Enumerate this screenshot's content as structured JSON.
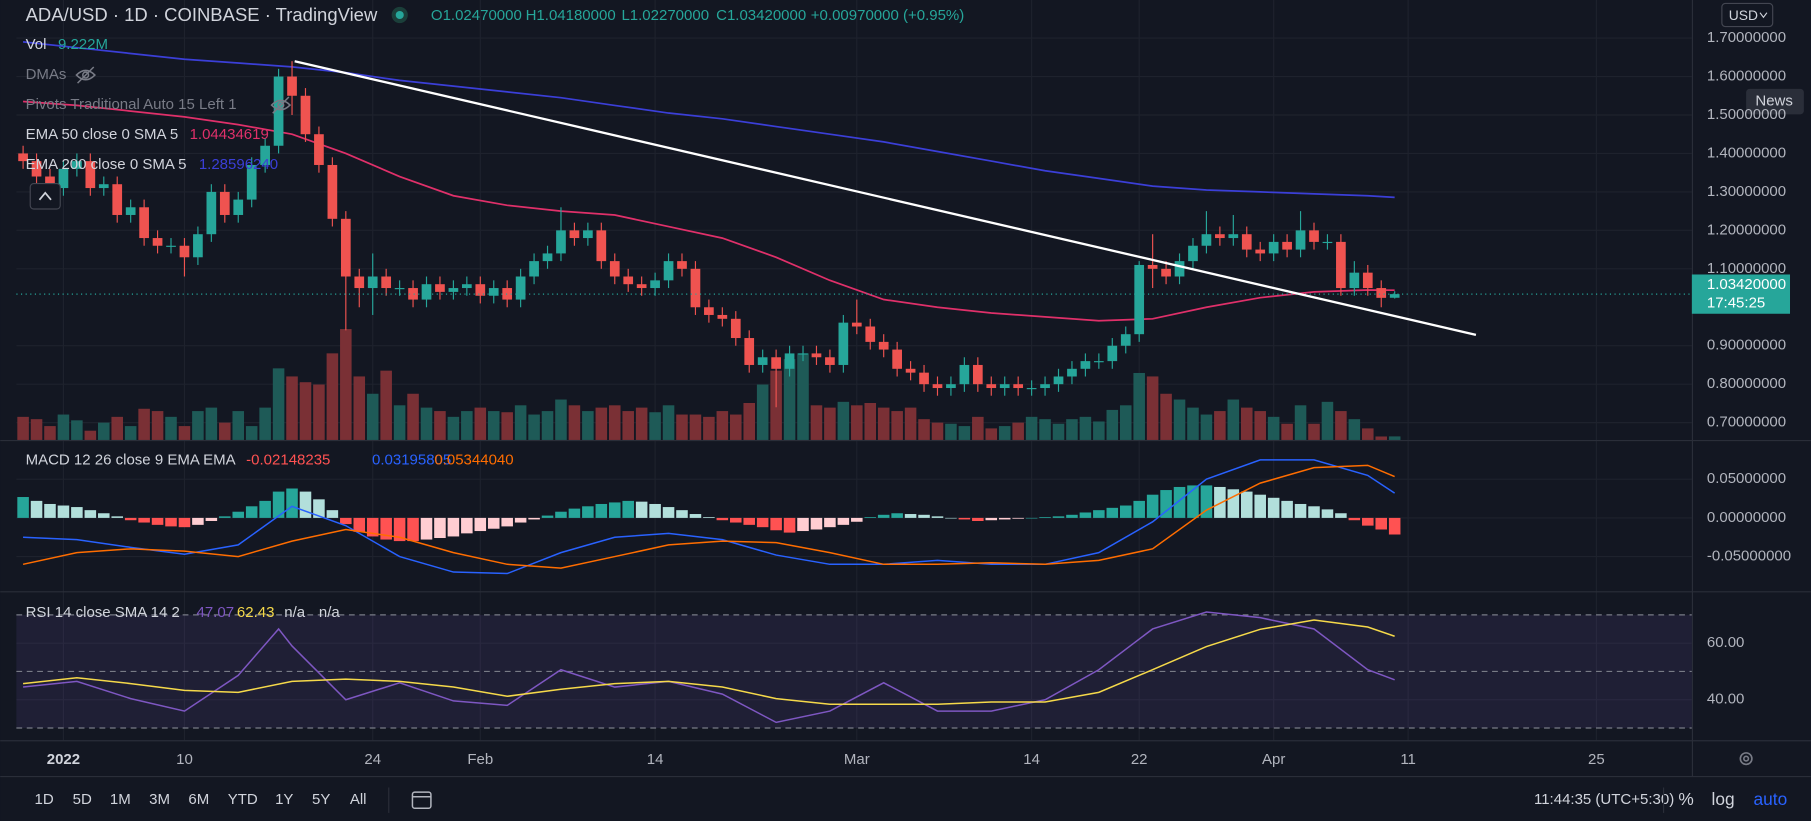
{
  "chart_data": [
    {
      "type": "candlestick",
      "title": "ADA/USD · 1D · COINBASE · TradingView",
      "ohlc_labels": [
        "O1.02470000",
        "H1.04180000",
        "L1.02270000",
        "C1.03420000",
        "+0.00970000 (+0.95%)"
      ],
      "up_color": "#26a69a",
      "down_color": "#ef5350",
      "grid": true,
      "price_label": "1.03420000",
      "countdown": "17:45:25",
      "xlim": [
        -0.5,
        124.1
      ],
      "xticks": [
        {
          "value": 3,
          "label": "2022"
        },
        {
          "value": 12,
          "label": "10"
        },
        {
          "value": 26,
          "label": "24"
        },
        {
          "value": 34,
          "label": "Feb"
        },
        {
          "value": 47,
          "label": "14"
        },
        {
          "value": 62,
          "label": "Mar"
        },
        {
          "value": 75,
          "label": "14"
        },
        {
          "value": 83,
          "label": "22"
        },
        {
          "value": 93,
          "label": "Apr"
        },
        {
          "value": 103,
          "label": "11"
        },
        {
          "value": 117,
          "label": "25"
        }
      ],
      "ylim": [
        0.655,
        1.799
      ],
      "yticks": [
        {
          "value": 0.7,
          "label": "0.70000000"
        },
        {
          "value": 0.8,
          "label": "0.80000000"
        },
        {
          "value": 0.9,
          "label": "0.90000000"
        },
        {
          "value": 1.1,
          "label": "1.10000000"
        },
        {
          "value": 1.2,
          "label": "1.20000000"
        },
        {
          "value": 1.3,
          "label": "1.30000000"
        },
        {
          "value": 1.4,
          "label": "1.40000000"
        },
        {
          "value": 1.5,
          "label": "1.50000000"
        },
        {
          "value": 1.6,
          "label": "1.60000000"
        },
        {
          "value": 1.7,
          "label": "1.70000000"
        }
      ],
      "open": [
        1.4,
        1.38,
        1.34,
        1.31,
        1.36,
        1.38,
        1.31,
        1.32,
        1.24,
        1.26,
        1.18,
        1.16,
        1.16,
        1.13,
        1.19,
        1.3,
        1.24,
        1.28,
        1.37,
        1.42,
        1.6,
        1.55,
        1.45,
        1.37,
        1.23,
        1.08,
        1.05,
        1.08,
        1.05,
        1.05,
        1.02,
        1.06,
        1.04,
        1.05,
        1.06,
        1.03,
        1.05,
        1.02,
        1.08,
        1.12,
        1.14,
        1.2,
        1.18,
        1.2,
        1.12,
        1.08,
        1.06,
        1.05,
        1.07,
        1.12,
        1.1,
        1.0,
        0.98,
        0.97,
        0.92,
        0.85,
        0.87,
        0.84,
        0.88,
        0.88,
        0.87,
        0.85,
        0.96,
        0.95,
        0.91,
        0.89,
        0.84,
        0.83,
        0.8,
        0.79,
        0.8,
        0.85,
        0.8,
        0.79,
        0.8,
        0.79,
        0.79,
        0.8,
        0.82,
        0.84,
        0.86,
        0.86,
        0.9,
        0.93,
        1.11,
        1.1,
        1.08,
        1.12,
        1.16,
        1.19,
        1.18,
        1.19,
        1.15,
        1.14,
        1.17,
        1.15,
        1.2,
        1.17,
        1.17,
        1.05,
        1.09,
        1.05,
        1.0247
      ],
      "high": [
        1.42,
        1.4,
        1.36,
        1.38,
        1.4,
        1.4,
        1.34,
        1.34,
        1.28,
        1.28,
        1.2,
        1.18,
        1.18,
        1.21,
        1.32,
        1.32,
        1.3,
        1.39,
        1.44,
        1.62,
        1.64,
        1.57,
        1.47,
        1.39,
        1.25,
        1.1,
        1.14,
        1.1,
        1.07,
        1.07,
        1.08,
        1.08,
        1.07,
        1.08,
        1.08,
        1.07,
        1.07,
        1.1,
        1.14,
        1.16,
        1.26,
        1.22,
        1.22,
        1.22,
        1.14,
        1.1,
        1.08,
        1.09,
        1.14,
        1.14,
        1.12,
        1.02,
        1.0,
        0.99,
        0.94,
        0.89,
        0.89,
        0.9,
        0.9,
        0.9,
        0.89,
        0.98,
        1.02,
        0.97,
        0.93,
        0.91,
        0.86,
        0.85,
        0.82,
        0.82,
        0.87,
        0.87,
        0.82,
        0.82,
        0.82,
        0.81,
        0.82,
        0.84,
        0.86,
        0.88,
        0.88,
        0.92,
        0.95,
        1.12,
        1.19,
        1.12,
        1.14,
        1.18,
        1.25,
        1.21,
        1.24,
        1.21,
        1.17,
        1.19,
        1.19,
        1.25,
        1.22,
        1.19,
        1.19,
        1.12,
        1.11,
        1.07,
        1.0418
      ],
      "low": [
        1.36,
        1.32,
        1.29,
        1.29,
        1.34,
        1.29,
        1.29,
        1.22,
        1.22,
        1.16,
        1.14,
        1.14,
        1.08,
        1.11,
        1.17,
        1.22,
        1.22,
        1.26,
        1.35,
        1.4,
        1.5,
        1.43,
        1.35,
        1.21,
        0.94,
        1.0,
        0.98,
        1.03,
        1.03,
        1.0,
        1.0,
        1.02,
        1.02,
        1.03,
        1.01,
        1.01,
        1.0,
        1.0,
        1.06,
        1.1,
        1.12,
        1.16,
        1.16,
        1.1,
        1.06,
        1.04,
        1.03,
        1.03,
        1.05,
        1.08,
        0.98,
        0.96,
        0.95,
        0.9,
        0.83,
        0.83,
        0.74,
        0.82,
        0.86,
        0.85,
        0.83,
        0.83,
        0.93,
        0.89,
        0.87,
        0.82,
        0.81,
        0.78,
        0.77,
        0.77,
        0.78,
        0.78,
        0.77,
        0.77,
        0.77,
        0.77,
        0.77,
        0.78,
        0.8,
        0.82,
        0.84,
        0.84,
        0.88,
        0.91,
        1.05,
        1.06,
        1.06,
        1.1,
        1.14,
        1.16,
        1.16,
        1.13,
        1.12,
        1.12,
        1.13,
        1.13,
        1.15,
        1.15,
        1.03,
        1.03,
        1.03,
        1.0,
        1.0227
      ],
      "close": [
        1.38,
        1.34,
        1.31,
        1.36,
        1.38,
        1.31,
        1.32,
        1.24,
        1.26,
        1.18,
        1.16,
        1.16,
        1.13,
        1.19,
        1.3,
        1.24,
        1.28,
        1.37,
        1.42,
        1.6,
        1.55,
        1.45,
        1.37,
        1.23,
        1.08,
        1.05,
        1.08,
        1.05,
        1.05,
        1.02,
        1.06,
        1.04,
        1.05,
        1.06,
        1.03,
        1.05,
        1.02,
        1.08,
        1.12,
        1.14,
        1.2,
        1.18,
        1.2,
        1.12,
        1.08,
        1.06,
        1.05,
        1.07,
        1.12,
        1.1,
        1.0,
        0.98,
        0.97,
        0.92,
        0.85,
        0.87,
        0.84,
        0.88,
        0.88,
        0.87,
        0.85,
        0.96,
        0.95,
        0.91,
        0.89,
        0.84,
        0.83,
        0.8,
        0.79,
        0.8,
        0.85,
        0.8,
        0.79,
        0.8,
        0.79,
        0.79,
        0.8,
        0.82,
        0.84,
        0.86,
        0.86,
        0.9,
        0.93,
        1.11,
        1.1,
        1.08,
        1.12,
        1.16,
        1.19,
        1.18,
        1.19,
        1.15,
        1.14,
        1.17,
        1.15,
        1.2,
        1.17,
        1.17,
        1.05,
        1.09,
        1.05,
        1.0245,
        1.0342
      ],
      "volume": {
        "name": "Vol",
        "value_label": "9.222M",
        "up_color": "#1e5a57",
        "down_color": "#7a3035",
        "ylim": [
          0,
          1143
        ],
        "values": [
          60,
          54,
          36,
          66,
          51,
          24,
          45,
          60,
          36,
          81,
          75,
          60,
          36,
          75,
          84,
          45,
          75,
          36,
          84,
          186,
          165,
          150,
          144,
          225,
          288,
          165,
          120,
          180,
          90,
          120,
          84,
          75,
          60,
          75,
          84,
          75,
          72,
          90,
          66,
          75,
          105,
          90,
          75,
          84,
          90,
          75,
          84,
          72,
          90,
          66,
          66,
          60,
          75,
          66,
          96,
          144,
          180,
          210,
          225,
          90,
          84,
          99,
          90,
          96,
          84,
          75,
          84,
          54,
          45,
          42,
          36,
          60,
          30,
          36,
          45,
          60,
          54,
          42,
          54,
          60,
          48,
          78,
          90,
          174,
          165,
          120,
          105,
          84,
          66,
          75,
          105,
          84,
          75,
          60,
          42,
          90,
          42,
          99,
          75,
          54,
          30,
          9,
          9.222
        ]
      },
      "indicators": [
        "DMAs",
        "Pivots Traditional Auto 15 Left 1"
      ],
      "series": [
        {
          "name": "EMA 50 close 0 SMA 5",
          "value_label": "1.04434619",
          "color": "#e0306a",
          "x": [
            0,
            4,
            8,
            12,
            16,
            20,
            24,
            28,
            32,
            36,
            40,
            44,
            48,
            52,
            56,
            60,
            64,
            68,
            72,
            76,
            80,
            84,
            88,
            92,
            96,
            100,
            102
          ],
          "values": [
            1.535,
            1.525,
            1.51,
            1.495,
            1.475,
            1.45,
            1.4,
            1.34,
            1.29,
            1.265,
            1.25,
            1.24,
            1.21,
            1.18,
            1.13,
            1.07,
            1.02,
            1.0,
            0.985,
            0.975,
            0.965,
            0.97,
            1.0,
            1.025,
            1.04,
            1.045,
            1.04434619
          ]
        },
        {
          "name": "EMA 200 close 0 SMA 5",
          "value_label": "1.28596240",
          "color": "#3b3fd8",
          "x": [
            0,
            4,
            8,
            12,
            16,
            20,
            24,
            28,
            32,
            36,
            40,
            44,
            48,
            52,
            56,
            60,
            64,
            68,
            72,
            76,
            80,
            84,
            88,
            92,
            96,
            100,
            102
          ],
          "values": [
            1.69,
            1.675,
            1.66,
            1.645,
            1.635,
            1.625,
            1.61,
            1.59,
            1.575,
            1.56,
            1.545,
            1.525,
            1.505,
            1.49,
            1.47,
            1.45,
            1.43,
            1.405,
            1.38,
            1.355,
            1.335,
            1.315,
            1.305,
            1.3,
            1.295,
            1.29,
            1.2859624
          ]
        }
      ]
    },
    {
      "type": "macd",
      "name": "MACD 12 26 close 9 EMA EMA",
      "ylim": [
        -0.0948,
        0.0993
      ],
      "yticks": [
        {
          "value": 0.05,
          "label": "0.05000000"
        },
        {
          "value": 0,
          "label": "0.00000000"
        },
        {
          "value": -0.05,
          "label": "-0.05000000"
        }
      ],
      "histogram": {
        "value_label": "-0.02148235",
        "rise_pos_color": "#26a69a",
        "fall_pos_color": "#b2dfdb",
        "fall_neg_color": "#ff5252",
        "rise_neg_color": "#ffcdd2",
        "values": [
          0.027,
          0.022,
          0.018,
          0.016,
          0.014,
          0.01,
          0.006,
          0.002,
          -0.003,
          -0.006,
          -0.009,
          -0.011,
          -0.012,
          -0.009,
          -0.004,
          0.002,
          0.008,
          0.015,
          0.022,
          0.034,
          0.038,
          0.034,
          0.024,
          0.01,
          -0.008,
          -0.018,
          -0.024,
          -0.028,
          -0.03,
          -0.03,
          -0.028,
          -0.026,
          -0.024,
          -0.02,
          -0.017,
          -0.014,
          -0.011,
          -0.006,
          -0.002,
          0.003,
          0.008,
          0.012,
          0.015,
          0.018,
          0.02,
          0.022,
          0.021,
          0.018,
          0.014,
          0.01,
          0.005,
          0.001,
          -0.003,
          -0.006,
          -0.009,
          -0.012,
          -0.016,
          -0.019,
          -0.017,
          -0.015,
          -0.012,
          -0.009,
          -0.005,
          0.001,
          0.004,
          0.006,
          0.005,
          0.004,
          0.002,
          0.0,
          -0.002,
          -0.004,
          -0.003,
          -0.002,
          -0.001,
          0.0,
          0.001,
          0.002,
          0.004,
          0.007,
          0.01,
          0.013,
          0.016,
          0.022,
          0.03,
          0.036,
          0.04,
          0.042,
          0.042,
          0.04,
          0.037,
          0.034,
          0.03,
          0.026,
          0.022,
          0.018,
          0.015,
          0.011,
          0.006,
          -0.003,
          -0.01,
          -0.015,
          -0.02148235
        ]
      },
      "series": [
        {
          "value_label": "0.03195805",
          "color": "#2962ff",
          "x": [
            0,
            4,
            8,
            12,
            16,
            20,
            24,
            28,
            32,
            36,
            40,
            44,
            48,
            52,
            56,
            60,
            64,
            68,
            72,
            76,
            80,
            84,
            88,
            92,
            96,
            100,
            102
          ],
          "values": [
            -0.025,
            -0.028,
            -0.038,
            -0.047,
            -0.035,
            0.015,
            -0.01,
            -0.05,
            -0.07,
            -0.072,
            -0.045,
            -0.025,
            -0.02,
            -0.028,
            -0.048,
            -0.06,
            -0.06,
            -0.055,
            -0.06,
            -0.06,
            -0.045,
            -0.005,
            0.05,
            0.075,
            0.075,
            0.055,
            0.03195805
          ]
        },
        {
          "value_label": "0.05344040",
          "color": "#ff6d00",
          "x": [
            0,
            4,
            8,
            12,
            16,
            20,
            24,
            28,
            32,
            36,
            40,
            44,
            48,
            52,
            56,
            60,
            64,
            68,
            72,
            76,
            80,
            84,
            88,
            92,
            96,
            100,
            102
          ],
          "values": [
            -0.06,
            -0.045,
            -0.04,
            -0.043,
            -0.05,
            -0.03,
            -0.015,
            -0.025,
            -0.045,
            -0.06,
            -0.065,
            -0.05,
            -0.035,
            -0.03,
            -0.032,
            -0.045,
            -0.06,
            -0.06,
            -0.058,
            -0.06,
            -0.055,
            -0.04,
            0.01,
            0.045,
            0.065,
            0.068,
            0.0534404
          ]
        }
      ]
    },
    {
      "type": "rsi",
      "name": "RSI 14 close SMA 14 2",
      "ylim": [
        25.7,
        77.96
      ],
      "yticks": [
        {
          "value": 60,
          "label": "60.00"
        },
        {
          "value": 40,
          "label": "40.00"
        }
      ],
      "bands": [
        70,
        50,
        30
      ],
      "band_color": "#7e57c2",
      "na_labels": [
        "n/a",
        "n/a"
      ],
      "series": [
        {
          "value_label": "47.07",
          "color": "#7e57c2",
          "x": [
            0,
            4,
            8,
            12,
            16,
            19,
            20,
            24,
            28,
            32,
            36,
            40,
            44,
            48,
            52,
            56,
            60,
            64,
            68,
            72,
            76,
            80,
            84,
            88,
            92,
            96,
            100,
            102
          ],
          "values": [
            44.5,
            46.5,
            40.4,
            36,
            48.6,
            65,
            59,
            40,
            46,
            39.6,
            38,
            50.6,
            44.5,
            46.5,
            42,
            32,
            36,
            46,
            36,
            36,
            40,
            50.6,
            65,
            71,
            69,
            65,
            50.6,
            47.07
          ]
        },
        {
          "value_label": "62.43",
          "color": "#f5d94a",
          "x": [
            0,
            4,
            8,
            12,
            16,
            20,
            24,
            28,
            32,
            36,
            40,
            44,
            48,
            52,
            56,
            60,
            64,
            68,
            72,
            76,
            80,
            84,
            88,
            92,
            96,
            100,
            102
          ],
          "values": [
            45.7,
            47.8,
            45.7,
            43.3,
            42.6,
            46.5,
            47.3,
            46.5,
            44.5,
            41.2,
            43.7,
            45.7,
            46.5,
            44.5,
            40.4,
            38.4,
            38.4,
            38.4,
            39.2,
            39.2,
            42.6,
            50.6,
            58.8,
            64.9,
            68.2,
            65.7,
            62.43
          ]
        }
      ]
    }
  ],
  "toolbar": {
    "ranges": [
      "1D",
      "5D",
      "1M",
      "3M",
      "6M",
      "YTD",
      "1Y",
      "5Y",
      "All"
    ],
    "time": "11:44:35 (UTC+5:30)",
    "options": [
      "%",
      "log",
      "auto"
    ]
  },
  "axis_controls": {
    "currency": "USD",
    "news": "News"
  }
}
